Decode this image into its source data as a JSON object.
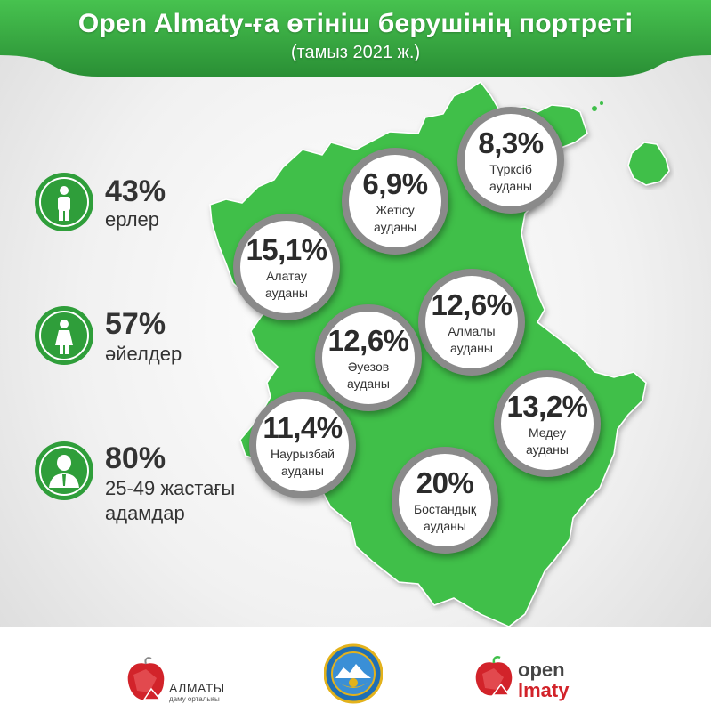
{
  "header": {
    "title": "Open Almaty-ға өтініш берушінің портреті",
    "subtitle": "(тамыз 2021 ж.)"
  },
  "stats": [
    {
      "value": "43%",
      "label": "ерлер",
      "icon": "male-person-icon"
    },
    {
      "value": "57%",
      "label": "әйелдер",
      "icon": "female-person-icon"
    },
    {
      "value": "80%",
      "label_line1": "25-49 жастағы",
      "label_line2": "адамдар",
      "icon": "businessman-icon"
    }
  ],
  "districts": [
    {
      "value": "8,3%",
      "name1": "Түрксіб",
      "name2": "ауданы"
    },
    {
      "value": "6,9%",
      "name1": "Жетісу",
      "name2": "ауданы"
    },
    {
      "value": "15,1%",
      "name1": "Алатау",
      "name2": "ауданы"
    },
    {
      "value": "12,6%",
      "name1": "Алмалы",
      "name2": "ауданы"
    },
    {
      "value": "12,6%",
      "name1": "Әуезов",
      "name2": "ауданы"
    },
    {
      "value": "11,4%",
      "name1": "Наурызбай",
      "name2": "ауданы"
    },
    {
      "value": "13,2%",
      "name1": "Медеу",
      "name2": "ауданы"
    },
    {
      "value": "20%",
      "name1": "Бостандық",
      "name2": "ауданы"
    }
  ],
  "footer": {
    "logo1_line1": "АЛМАТЫ",
    "logo1_line2": "даму орталығы",
    "logo3_line1": "open",
    "logo3_line2": "lmaty"
  },
  "colors": {
    "green": "#3fbf4a",
    "banner_green": "#2f9e3a",
    "bubble_border": "#8a8a8a",
    "accent_red": "#d2232a"
  }
}
